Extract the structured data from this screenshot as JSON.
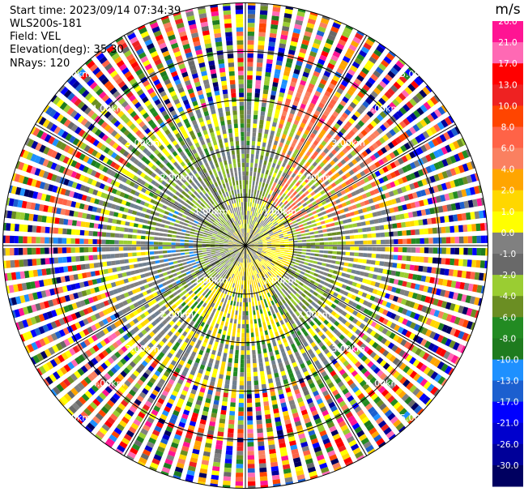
{
  "header": {
    "start_time": "Start time: 2023/09/14 07:34:39",
    "instrument": "WLS200s-181",
    "field": "Field: VEL",
    "elevation": "Elevation(deg): 35.30",
    "nrays": "NRays: 120"
  },
  "colorbar": {
    "unit": "m/s",
    "ticks": [
      "26.0",
      "21.0",
      "17.0",
      "13.0",
      "10.0",
      "8.0",
      "6.0",
      "4.0",
      "2.0",
      "1.0",
      "0.0",
      "-1.0",
      "-2.0",
      "-4.0",
      "-6.0",
      "-8.0",
      "-10.0",
      "-13.0",
      "-17.0",
      "-21.0",
      "-26.0",
      "-30.0"
    ],
    "colors": [
      "#ff1493",
      "#ff69b4",
      "#ff0000",
      "#ee2222",
      "#ff4500",
      "#ff6347",
      "#fa8060",
      "#ffa500",
      "#ffd700",
      "#ffff00",
      "#808080",
      "#696969",
      "#9acd32",
      "#6b8e23",
      "#228b22",
      "#1e7b1e",
      "#1e90ff",
      "#1c5fcf",
      "#0000ff",
      "#0000cd",
      "#000099",
      "#000060"
    ]
  },
  "chart_data": {
    "type": "heatmap",
    "title": "",
    "n_rays": 120,
    "range_rings_km": [
      1.0,
      2.0,
      3.0,
      4.0,
      5.0
    ],
    "range_labels": [
      "1.00km",
      "2.00km",
      "3.00km",
      "4.00km",
      "5.00km"
    ],
    "azimuth_lines_deg": [
      0,
      30,
      60,
      90,
      120,
      150,
      180,
      210,
      240,
      270,
      300,
      330
    ],
    "clim": [
      -30,
      26
    ],
    "colormap": "velocity",
    "grid": true
  }
}
